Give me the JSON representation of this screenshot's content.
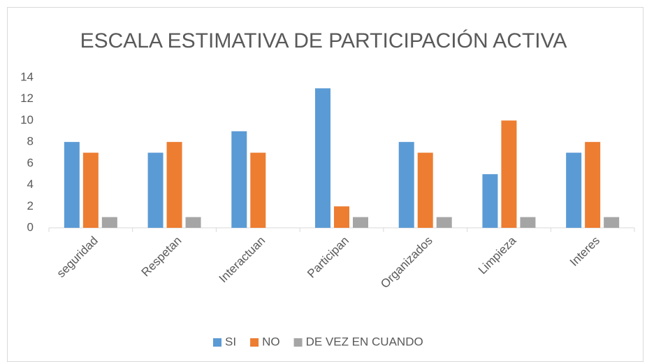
{
  "chart_data": {
    "type": "bar",
    "title": "ESCALA ESTIMATIVA DE PARTICIPACIÓN ACTIVA",
    "categories": [
      "seguridad",
      "Respetan",
      "Interactuan",
      "Participan",
      "Organizados",
      "Limpieza",
      "Interes"
    ],
    "series": [
      {
        "name": "SI",
        "color": "#5b9bd5",
        "values": [
          8,
          7,
          9,
          13,
          8,
          5,
          7
        ]
      },
      {
        "name": "NO",
        "color": "#ed7d31",
        "values": [
          7,
          8,
          7,
          2,
          7,
          10,
          8
        ]
      },
      {
        "name": "DE VEZ EN CUANDO",
        "color": "#a5a5a5",
        "values": [
          1,
          1,
          0,
          1,
          1,
          1,
          1
        ]
      }
    ],
    "ylim": [
      0,
      14
    ],
    "yticks": [
      0,
      2,
      4,
      6,
      8,
      10,
      12,
      14
    ],
    "grid": false,
    "legend": "bottom"
  }
}
